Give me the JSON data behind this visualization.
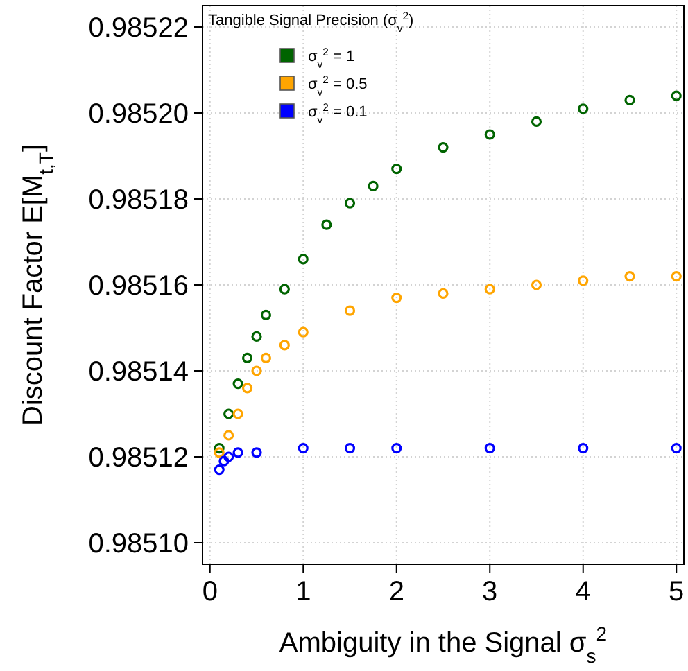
{
  "chart_data": {
    "type": "scatter",
    "xlabel": "Ambiguity in the Signal σ$_{s}$$^{2}$",
    "ylabel": "Discount Factor E[M$_{t,T}$]",
    "legend_title": "Tangible Signal Precision (σ$_{v}$$^{2}$)",
    "xlim": [
      -0.08,
      5.08
    ],
    "xticks": [
      0,
      1,
      2,
      3,
      4,
      5
    ],
    "ylim": [
      0.985095,
      0.985225
    ],
    "yticks": [
      {
        "value": 0.9851,
        "label": "0.98510"
      },
      0.98512,
      0.98514,
      0.98516,
      0.98518,
      {
        "value": 0.9852,
        "label": "0.98520"
      },
      0.98522
    ],
    "grid": true,
    "legend": "top left",
    "marker": "circle",
    "series": [
      {
        "name": "σ$_{v}$$^{2}$ = 1",
        "color": "#006400",
        "x": [
          0.1,
          0.2,
          0.3,
          0.4,
          0.5,
          0.6,
          0.8,
          1,
          1.25,
          1.5,
          1.75,
          2,
          2.5,
          3,
          3.5,
          4,
          4.5,
          5
        ],
        "values": [
          0.985122,
          0.98513,
          0.985137,
          0.985143,
          0.985148,
          0.985153,
          0.985159,
          0.985166,
          0.985174,
          0.985179,
          0.985183,
          0.985187,
          0.985192,
          0.985195,
          0.985198,
          0.985201,
          0.985203,
          0.985204
        ]
      },
      {
        "name": "σ$_{v}$$^{2}$ = 0.5",
        "color": "#ffa500",
        "x": [
          0.1,
          0.2,
          0.3,
          0.4,
          0.5,
          0.6,
          0.8,
          1,
          1.5,
          2,
          2.5,
          3,
          3.5,
          4,
          4.5,
          5
        ],
        "values": [
          0.985121,
          0.985125,
          0.98513,
          0.985136,
          0.98514,
          0.985143,
          0.985146,
          0.985149,
          0.985154,
          0.985157,
          0.985158,
          0.985159,
          0.98516,
          0.985161,
          0.985162,
          0.985162
        ]
      },
      {
        "name": "σ$_{v}$$^{2}$ = 0.1",
        "color": "#0000ff",
        "x": [
          0.1,
          0.15,
          0.2,
          0.3,
          0.5,
          1,
          1.5,
          2,
          3,
          4,
          5
        ],
        "values": [
          0.985117,
          0.985119,
          0.98512,
          0.985121,
          0.985121,
          0.985122,
          0.985122,
          0.985122,
          0.985122,
          0.985122,
          0.985122
        ]
      }
    ]
  }
}
